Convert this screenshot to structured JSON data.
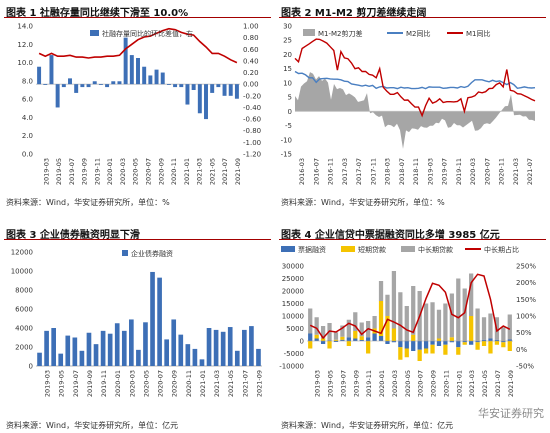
{
  "charts": [
    {
      "title": "图表 1  社融存量同比继续下滑至 10.0%",
      "source": "资料来源：Wind，华安证券研究所，单位：%",
      "chart_data": {
        "type": "bar-line",
        "legend": "top-right",
        "x": [
          "2019-01",
          "2019-02",
          "2019-03",
          "2019-04",
          "2019-05",
          "2019-06",
          "2019-07",
          "2019-08",
          "2019-09",
          "2019-10",
          "2019-11",
          "2019-12",
          "2020-01",
          "2020-02",
          "2020-03",
          "2020-04",
          "2020-05",
          "2020-06",
          "2020-07",
          "2020-08",
          "2020-09",
          "2020-10",
          "2020-11",
          "2020-12",
          "2021-01",
          "2021-02",
          "2021-03",
          "2021-04",
          "2021-05",
          "2021-06",
          "2021-07",
          "2021-08",
          "2021-09"
        ],
        "tick_labels": [
          "2019-03",
          "2019-05",
          "2019-07",
          "2019-09",
          "2019-11",
          "2020-01",
          "2020-03",
          "2020-05",
          "2020-07",
          "2020-09",
          "2020-11",
          "2021-01",
          "2021-03",
          "2021-05",
          "2021-07",
          "2021-09"
        ],
        "series": [
          {
            "name": "社融存量同比的环比差值，右",
            "type": "bar",
            "axis": "right",
            "color": "#3d6fb6",
            "values": [
              0.3,
              0.0,
              0.5,
              -0.4,
              -0.05,
              0.1,
              -0.15,
              -0.05,
              -0.05,
              0.05,
              0.0,
              -0.05,
              0.05,
              0.05,
              0.8,
              0.5,
              0.45,
              0.3,
              0.15,
              0.25,
              0.2,
              0.0,
              -0.05,
              -0.05,
              -0.35,
              -0.1,
              -0.5,
              -0.6,
              -0.15,
              -0.05,
              -0.2,
              -0.2,
              -0.25
            ]
          },
          {
            "type": "line",
            "axis": "left",
            "color": "#c00000",
            "values": [
              11.0,
              10.7,
              11.0,
              10.7,
              10.7,
              10.8,
              10.6,
              10.6,
              10.5,
              10.6,
              10.6,
              10.7,
              10.7,
              10.8,
              11.5,
              12.0,
              12.5,
              12.8,
              12.9,
              13.2,
              13.5,
              13.7,
              13.6,
              13.3,
              13.1,
              13.0,
              12.3,
              11.7,
              11.0,
              11.0,
              10.7,
              10.3,
              10.0
            ]
          }
        ],
        "ylim_left": [
          0,
          14
        ],
        "yticks_left": [
          "0.0",
          "2.0",
          "4.0",
          "6.0",
          "8.0",
          "10.0",
          "12.0",
          "14.0"
        ],
        "ylim_right": [
          -1.2,
          1.0
        ],
        "yticks_right": [
          "1.00",
          "0.80",
          "0.60",
          "0.40",
          "0.20",
          "0.00",
          "-0.20",
          "-0.40",
          "-0.60",
          "-0.80",
          "-1.00",
          "-1.20"
        ]
      }
    },
    {
      "title": "图表 2  M1-M2 剪刀差继续走阔",
      "source": "资料来源：Wind，华安证券研究所，单位：%",
      "chart_data": {
        "type": "area-line",
        "legend": "top",
        "x_start": "2016-01",
        "tick_labels": [
          "2016-03",
          "2016-07",
          "2016-11",
          "2017-03",
          "2017-07",
          "2017-11",
          "2018-03",
          "2018-07",
          "2018-11",
          "2019-03",
          "2019-07",
          "2019-11",
          "2020-03",
          "2020-07",
          "2020-11",
          "2021-03",
          "2021-07"
        ],
        "series": [
          {
            "name": "M1-M2剪刀差",
            "type": "area",
            "color": "#a6a6a6",
            "values": [
              5.4,
              3.9,
              8.7,
              9.8,
              10.6,
              13.8,
              13.2,
              11.2,
              12.4,
              10.7,
              11.5,
              10.1,
              4.1,
              9.6,
              7.8,
              8.2,
              7.7,
              5.7,
              6.3,
              5.7,
              4.9,
              3.3,
              3.6,
              3.9,
              6.4,
              -0.7,
              -0.3,
              -1.4,
              -2.0,
              -1.5,
              -5.6,
              -4.7,
              -4.9,
              -5.6,
              -4.4,
              -6.6,
              -13.2,
              -6.7,
              -7.3,
              -6.0,
              -6.1,
              -6.5,
              -5.2,
              -5.7,
              -5.8,
              -5.1,
              -5.1,
              -4.0,
              -4.2,
              -2.6,
              -3.2,
              -5.8,
              -5.5,
              -4.1,
              -4.9,
              -4.9,
              -5.7,
              -4.9,
              -4.1,
              -3.3,
              -6.8,
              -6.7,
              -5.9,
              -4.5,
              -4.2,
              -4.5,
              -3.4,
              -2.2,
              -0.8,
              0.5,
              1.8,
              1.9,
              6.0,
              -1.4,
              -1.3,
              -1.2,
              -1.8,
              -1.7,
              -3.0,
              -3.0,
              -3.4
            ]
          },
          {
            "name": "M2同比",
            "type": "line",
            "color": "#4a7fc1",
            "values": [
              14.0,
              13.3,
              13.4,
              12.8,
              11.8,
              11.8,
              10.2,
              11.4,
              11.5,
              11.6,
              11.4,
              11.3,
              11.3,
              11.1,
              10.6,
              10.5,
              9.6,
              9.4,
              9.2,
              8.9,
              9.2,
              8.8,
              9.1,
              8.1,
              8.6,
              8.8,
              8.2,
              8.3,
              8.3,
              8.0,
              8.5,
              8.2,
              8.3,
              8.0,
              8.0,
              8.1,
              8.4,
              8.0,
              8.6,
              8.5,
              8.5,
              8.5,
              8.1,
              8.2,
              8.4,
              8.4,
              8.2,
              8.7,
              8.4,
              8.8,
              10.1,
              11.1,
              11.1,
              11.1,
              10.7,
              10.4,
              10.9,
              10.5,
              10.7,
              10.1,
              9.4,
              10.1,
              9.4,
              8.1,
              8.3,
              8.6,
              8.3,
              8.2,
              8.3
            ]
          },
          {
            "name": "M1同比",
            "type": "line",
            "color": "#c00000",
            "values": [
              18.6,
              17.4,
              22.1,
              22.9,
              23.7,
              24.6,
              25.4,
              25.3,
              24.7,
              24.0,
              22.7,
              21.4,
              14.5,
              21.0,
              18.8,
              18.5,
              17.0,
              15.0,
              15.3,
              14.0,
              14.0,
              13.0,
              12.7,
              11.8,
              15.0,
              8.5,
              7.1,
              6.0,
              6.0,
              6.6,
              5.1,
              3.9,
              4.0,
              2.7,
              1.5,
              1.5,
              -1.5,
              2.0,
              4.6,
              2.9,
              3.4,
              4.4,
              3.1,
              3.4,
              3.4,
              3.3,
              3.5,
              4.4,
              0.0,
              4.8,
              5.0,
              5.5,
              6.8,
              6.5,
              6.9,
              8.0,
              8.1,
              9.4,
              10.0,
              8.6,
              14.7,
              7.4,
              7.1,
              6.2,
              6.1,
              5.5,
              4.9,
              4.2,
              3.7
            ]
          }
        ],
        "ylim": [
          -15,
          30
        ],
        "yticks": [
          "-15",
          "-10",
          "-5",
          "0",
          "5",
          "10",
          "15",
          "20",
          "25",
          "30"
        ]
      }
    },
    {
      "title": "图表 3  企业债券融资明显下滑",
      "source": "资料来源：Wind，华安证券研究所，单位：亿元",
      "chart_data": {
        "type": "bar",
        "legend": "top",
        "x": [
          "2019-02",
          "2019-03",
          "2019-04",
          "2019-05",
          "2019-06",
          "2019-07",
          "2019-08",
          "2019-09",
          "2019-10",
          "2019-11",
          "2019-12",
          "2020-01",
          "2020-02",
          "2020-03",
          "2020-04",
          "2020-05",
          "2020-06",
          "2020-07",
          "2020-08",
          "2020-09",
          "2020-10",
          "2020-11",
          "2020-12",
          "2021-01",
          "2021-02",
          "2021-03",
          "2021-04",
          "2021-05",
          "2021-06",
          "2021-07",
          "2021-08",
          "2021-09"
        ],
        "tick_labels": [
          "2019-03",
          "2019-05",
          "2019-07",
          "2019-09",
          "2019-11",
          "2020-01",
          "2020-03",
          "2020-05",
          "2020-07",
          "2020-09",
          "2020-11",
          "2021-01",
          "2021-03",
          "2021-05",
          "2021-07",
          "2021-09"
        ],
        "series": [
          {
            "name": "企业债券融资",
            "color": "#3d6fb6",
            "values": [
              1400,
              3700,
              4000,
              1300,
              3200,
              3000,
              1600,
              3500,
              2300,
              3700,
              3400,
              4500,
              3700,
              4900,
              1700,
              4600,
              9900,
              9300,
              2800,
              4900,
              3300,
              2300,
              1800,
              700,
              4000,
              3800,
              3600,
              4100,
              1600,
              3800,
              4200,
              1800
            ]
          }
        ],
        "ylim": [
          0,
          12000
        ],
        "yticks": [
          "0",
          "2000",
          "4000",
          "6000",
          "8000",
          "10000",
          "12000"
        ]
      }
    },
    {
      "title": "图表 4  企业信贷中票据融资同比多增 3985 亿元",
      "source": "资料来源：Wind，华安证券研究所，单位：亿元",
      "chart_data": {
        "type": "stacked-bar-line",
        "legend": "top",
        "tick_labels": [
          "2019-03",
          "2019-05",
          "2019-07",
          "2019-09",
          "2019-11",
          "2020-01",
          "2020-03",
          "2020-05",
          "2020-07",
          "2020-09",
          "2020-11",
          "2021-01",
          "2021-03",
          "2021-05",
          "2021-07",
          "2021-09"
        ],
        "series": [
          {
            "name": "票据融资",
            "type": "bar",
            "axis": "left",
            "color": "#3d6fb6",
            "values": [
              3000,
              1000,
              -1200,
              200,
              -400,
              500,
              1500,
              1000,
              400,
              1500,
              3000,
              2000,
              -1200,
              -500,
              -2500,
              -3000,
              -4000,
              -3500,
              -3000,
              -1500,
              -2000,
              -1500,
              -500,
              -2500,
              -500,
              -1500,
              -500,
              500,
              1000,
              500,
              -500,
              600
            ]
          },
          {
            "name": "短期贷款",
            "type": "bar",
            "axis": "left",
            "color": "#f5c400",
            "values": [
              -3000,
              1500,
              1000,
              -3000,
              500,
              1200,
              -2000,
              3000,
              1500,
              -5000,
              2000,
              14000,
              10000,
              5000,
              -5000,
              -3500,
              2500,
              -4500,
              -2000,
              -3500,
              1000,
              -4000,
              1500,
              -3000,
              -1000,
              10000,
              -3000,
              -2000,
              -5000,
              -1500,
              -2000,
              -4000
            ]
          },
          {
            "name": "中长期贷款",
            "type": "bar",
            "axis": "left",
            "color": "#a6a6a6",
            "values": [
              10000,
              7000,
              5000,
              7000,
              3000,
              4500,
              7000,
              7500,
              5500,
              6500,
              5000,
              8000,
              8500,
              23000,
              19500,
              14000,
              19500,
              20000,
              15000,
              15500,
              11500,
              15000,
              17500,
              25000,
              21000,
              17000,
              13000,
              9000,
              10000,
              9000,
              5500,
              10000
            ]
          },
          {
            "name": "中长期占比",
            "type": "line",
            "axis": "right",
            "color": "#c00000",
            "values": [
              72,
              63,
              34,
              55,
              52,
              64,
              78,
              70,
              45,
              62,
              55,
              48,
              90,
              82,
              72,
              58,
              51,
              100,
              153,
              198,
              192,
              171,
              105,
              95,
              110,
              200,
              225,
              220,
              150,
              55,
              70,
              60
            ]
          }
        ],
        "ylim_left": [
          -10000,
          30000
        ],
        "yticks_left": [
          "-10000",
          "-5000",
          "0",
          "5000",
          "10000",
          "15000",
          "20000",
          "25000",
          "30000"
        ],
        "ylim_right": [
          -50,
          250
        ],
        "yticks_right": [
          "-50%",
          "0%",
          "50%",
          "100%",
          "150%",
          "200%",
          "250%"
        ]
      }
    }
  ],
  "watermark": "华安证券研究"
}
